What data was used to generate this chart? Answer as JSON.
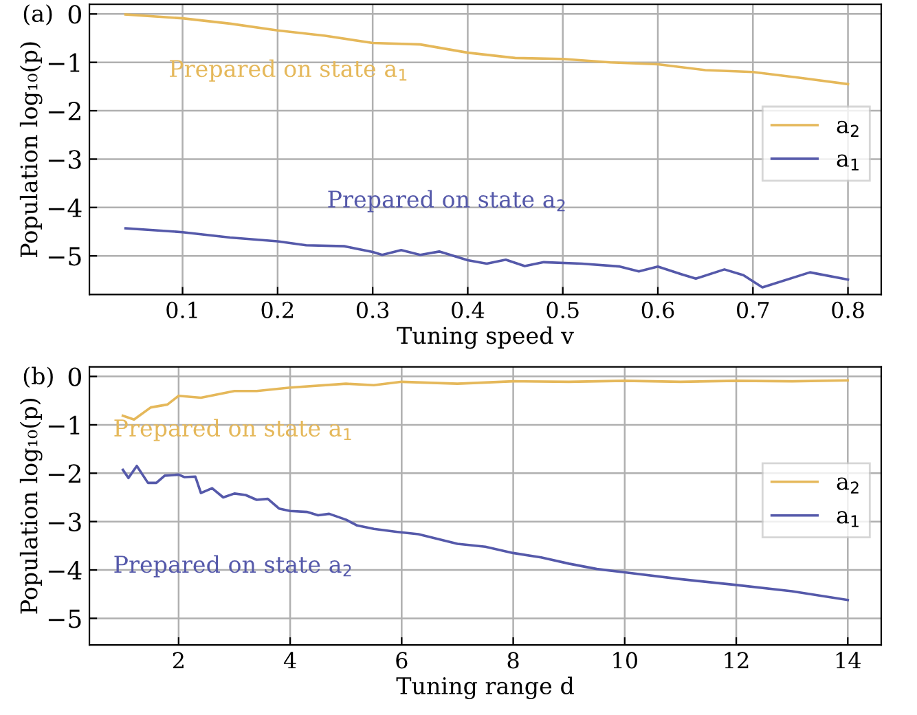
{
  "chart_data": [
    {
      "type": "line",
      "title": "(a)",
      "xlabel": "Tuning speed v",
      "ylabel": "Population log₁₀(p)",
      "xlim": [
        0.002,
        0.835
      ],
      "ylim": [
        -5.8,
        0.2
      ],
      "xticks": [
        0.1,
        0.2,
        0.3,
        0.4,
        0.5,
        0.6,
        0.7,
        0.8
      ],
      "yticks": [
        0,
        -1,
        -2,
        -3,
        -4,
        -5
      ],
      "grid": true,
      "legend": "right",
      "line_style": "solid",
      "marker": "none",
      "series": [
        {
          "name": "a$_{2}$",
          "color": "#e5b85a",
          "x": [
            0.04,
            0.1,
            0.15,
            0.2,
            0.25,
            0.3,
            0.35,
            0.4,
            0.45,
            0.5,
            0.55,
            0.6,
            0.65,
            0.7,
            0.75,
            0.8
          ],
          "values": [
            -0.01,
            -0.09,
            -0.2,
            -0.34,
            -0.45,
            -0.6,
            -0.63,
            -0.8,
            -0.91,
            -0.93,
            -1.0,
            -1.04,
            -1.16,
            -1.2,
            -1.32,
            -1.45
          ]
        },
        {
          "name": "a$_{1}$",
          "color": "#5559aa",
          "x": [
            0.04,
            0.1,
            0.15,
            0.2,
            0.23,
            0.27,
            0.3,
            0.31,
            0.33,
            0.35,
            0.37,
            0.4,
            0.42,
            0.44,
            0.46,
            0.48,
            0.52,
            0.56,
            0.58,
            0.6,
            0.625,
            0.64,
            0.67,
            0.69,
            0.71,
            0.76,
            0.8
          ],
          "values": [
            -4.43,
            -4.51,
            -4.62,
            -4.7,
            -4.78,
            -4.8,
            -4.92,
            -4.98,
            -4.88,
            -4.98,
            -4.91,
            -5.09,
            -5.16,
            -5.08,
            -5.21,
            -5.13,
            -5.16,
            -5.22,
            -5.32,
            -5.22,
            -5.38,
            -5.47,
            -5.28,
            -5.4,
            -5.65,
            -5.34,
            -5.49
          ]
        }
      ],
      "annotations": [
        "Prepared on state a$_{1}$",
        "Prepared on state a$_{2}$"
      ]
    },
    {
      "type": "line",
      "title": "(b)",
      "xlabel": "Tuning range d",
      "ylabel": "Population log₁₀(p)",
      "xlim": [
        0.4,
        14.6
      ],
      "ylim": [
        -5.55,
        0.2
      ],
      "xticks": [
        2,
        4,
        6,
        8,
        10,
        12,
        14
      ],
      "yticks": [
        0,
        -1,
        -2,
        -3,
        -4,
        -5
      ],
      "grid": true,
      "legend": "right",
      "line_style": "solid",
      "marker": "none",
      "series": [
        {
          "name": "a$_{2}$",
          "color": "#e5b85a",
          "x": [
            1,
            1.2,
            1.5,
            1.8,
            2,
            2.4,
            3,
            3.4,
            4,
            5,
            5.5,
            6,
            7,
            8,
            9,
            10,
            11,
            12,
            13,
            14
          ],
          "values": [
            -0.81,
            -0.89,
            -0.64,
            -0.58,
            -0.4,
            -0.44,
            -0.3,
            -0.3,
            -0.23,
            -0.15,
            -0.18,
            -0.11,
            -0.15,
            -0.1,
            -0.11,
            -0.09,
            -0.11,
            -0.09,
            -0.1,
            -0.08
          ]
        },
        {
          "name": "a$_{1}$",
          "color": "#5559aa",
          "x": [
            1,
            1.1,
            1.25,
            1.45,
            1.6,
            1.75,
            2,
            2.1,
            2.3,
            2.4,
            2.6,
            2.8,
            3,
            3.2,
            3.4,
            3.6,
            3.8,
            4,
            4.3,
            4.5,
            4.7,
            5,
            5.2,
            5.5,
            5.9,
            6.3,
            7,
            7.5,
            8,
            8.5,
            9,
            9.5,
            10,
            11,
            12,
            13,
            14
          ],
          "values": [
            -1.93,
            -2.1,
            -1.85,
            -2.2,
            -2.2,
            -2.05,
            -2.03,
            -2.08,
            -2.07,
            -2.41,
            -2.31,
            -2.5,
            -2.42,
            -2.45,
            -2.55,
            -2.53,
            -2.73,
            -2.78,
            -2.8,
            -2.87,
            -2.84,
            -2.96,
            -3.08,
            -3.15,
            -3.21,
            -3.26,
            -3.46,
            -3.52,
            -3.65,
            -3.74,
            -3.87,
            -3.98,
            -4.05,
            -4.19,
            -4.31,
            -4.44,
            -4.62
          ]
        }
      ],
      "annotations": [
        "Prepared on state a$_{1}$",
        "Prepared on state a$_{2}$"
      ]
    }
  ]
}
